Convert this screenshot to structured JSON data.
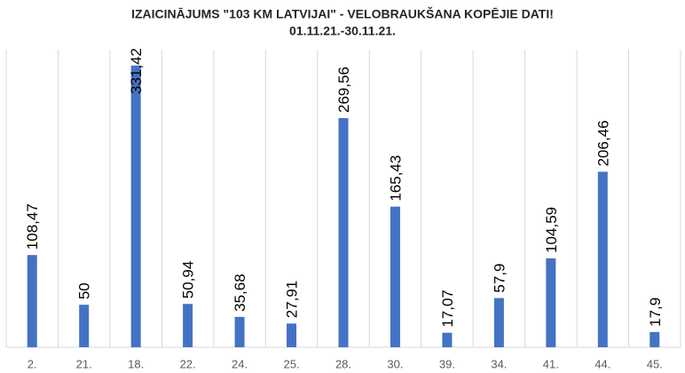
{
  "chart_data": {
    "type": "bar",
    "title": "IZAICINĀJUMS \"103 KM LATVIJAI\" - VELOBRAUKŠANA KOPĒJIE DATI!",
    "subtitle": "01.11.21.-30.11.21.",
    "categories": [
      "2.",
      "21.",
      "18.",
      "22.",
      "24.",
      "25.",
      "28.",
      "30.",
      "39.",
      "34.",
      "41.",
      "44.",
      "45."
    ],
    "values": [
      108.47,
      50,
      331.42,
      50.94,
      35.68,
      27.91,
      269.56,
      165.43,
      17.07,
      57.9,
      104.59,
      206.46,
      17.9
    ],
    "value_labels": [
      "108,47",
      "50",
      "331,42",
      "50,94",
      "35,68",
      "27,91",
      "269,56",
      "165,43",
      "17,07",
      "57,9",
      "104,59",
      "206,46",
      "17,9"
    ],
    "color": "#4472c4",
    "ylim": [
      0,
      350
    ]
  }
}
